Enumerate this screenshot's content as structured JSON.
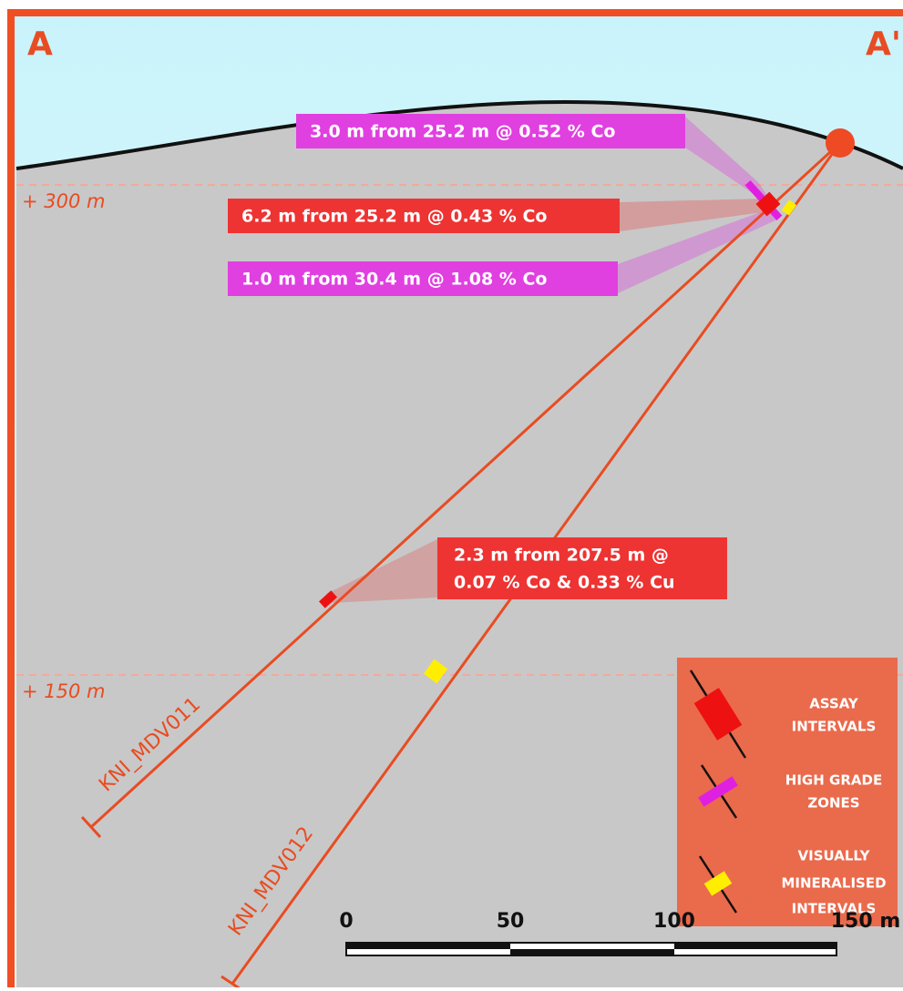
{
  "section": {
    "start_label": "A",
    "end_label": "A'"
  },
  "elevations": [
    "+ 300 m",
    "+ 150 m"
  ],
  "callouts": [
    {
      "lines": [
        "3.0 m from 25.2 m @ 0.52 % Co"
      ]
    },
    {
      "lines": [
        "6.2 m from 25.2 m @ 0.43 % Co"
      ]
    },
    {
      "lines": [
        "1.0 m from 30.4 m @ 1.08 % Co"
      ]
    },
    {
      "lines": [
        "2.3 m from 207.5 m @",
        "0.07 % Co & 0.33 % Cu"
      ]
    }
  ],
  "holes": [
    "KNI_MDV011",
    "KNI_MDV012"
  ],
  "legend": [
    {
      "lines": [
        "ASSAY",
        "INTERVALS"
      ]
    },
    {
      "lines": [
        "HIGH GRADE",
        "ZONES"
      ]
    },
    {
      "lines": [
        "VISUALLY",
        "MINERALISED",
        "INTERVALS"
      ]
    }
  ],
  "scale_bar": [
    "0",
    "50",
    "100",
    "150 m"
  ]
}
